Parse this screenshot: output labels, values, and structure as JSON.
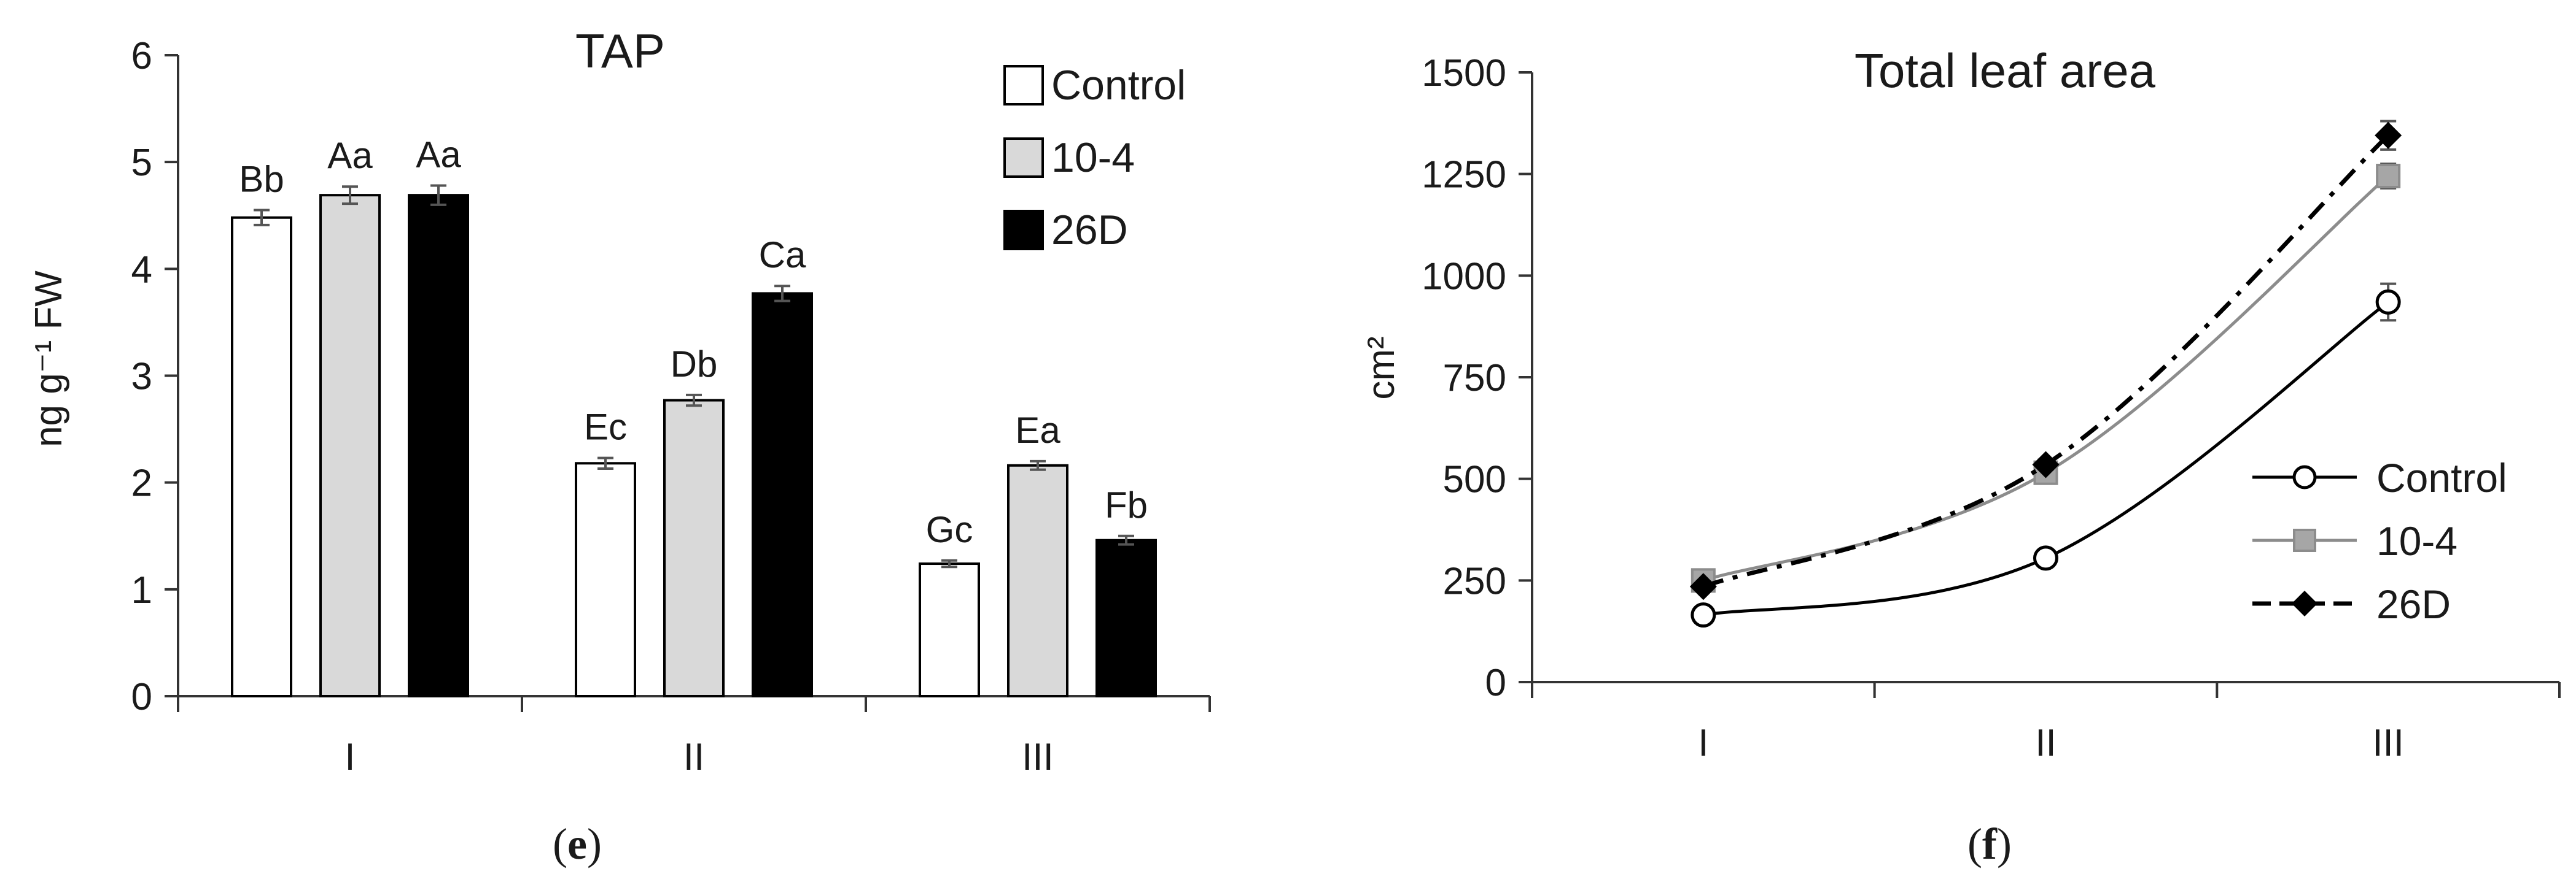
{
  "chart_data": [
    {
      "panel_label": "e",
      "type": "bar",
      "title": "TAP",
      "xlabel": "",
      "ylabel": "ng g⁻¹ FW",
      "ylim": [
        0,
        6
      ],
      "yticks": [
        "0",
        "1",
        "2",
        "3",
        "4",
        "5",
        "6"
      ],
      "categories": [
        "I",
        "II",
        "III"
      ],
      "legend_position": "top-right",
      "series": [
        {
          "name": "Control",
          "color": "#ffffff",
          "values": [
            4.48,
            2.18,
            1.24
          ],
          "errors": [
            0.07,
            0.05,
            0.03
          ],
          "labels": [
            "Bb",
            "Ec",
            "Gc"
          ]
        },
        {
          "name": "10-4",
          "color": "#d9d9d9",
          "values": [
            4.69,
            2.77,
            2.16
          ],
          "errors": [
            0.08,
            0.05,
            0.04
          ],
          "labels": [
            "Aa",
            "Db",
            "Ea"
          ]
        },
        {
          "name": "26D",
          "color": "#000000",
          "values": [
            4.69,
            3.77,
            1.46
          ],
          "errors": [
            0.09,
            0.07,
            0.04
          ],
          "labels": [
            "Aa",
            "Ca",
            "Fb"
          ]
        }
      ]
    },
    {
      "panel_label": "f",
      "type": "line",
      "title": "Total leaf area",
      "xlabel": "",
      "ylabel": "cm²",
      "ylim": [
        0,
        1500
      ],
      "yticks": [
        "0",
        "250",
        "500",
        "750",
        "1000",
        "1250",
        "1500"
      ],
      "categories": [
        "I",
        "II",
        "III"
      ],
      "legend_position": "right",
      "series": [
        {
          "name": "Control",
          "color": "#000000",
          "marker": "circle",
          "line_style": "solid",
          "values": [
            165,
            305,
            935
          ],
          "errors": [
            10,
            12,
            45
          ]
        },
        {
          "name": "10-4",
          "color": "#8c8c8c",
          "marker": "square",
          "line_style": "solid",
          "values": [
            250,
            515,
            1245
          ],
          "errors": [
            8,
            15,
            30
          ]
        },
        {
          "name": "26D",
          "color": "#000000",
          "marker": "diamond",
          "line_style": "dash-dot",
          "values": [
            235,
            535,
            1345
          ],
          "errors": [
            8,
            12,
            35
          ]
        }
      ]
    }
  ]
}
